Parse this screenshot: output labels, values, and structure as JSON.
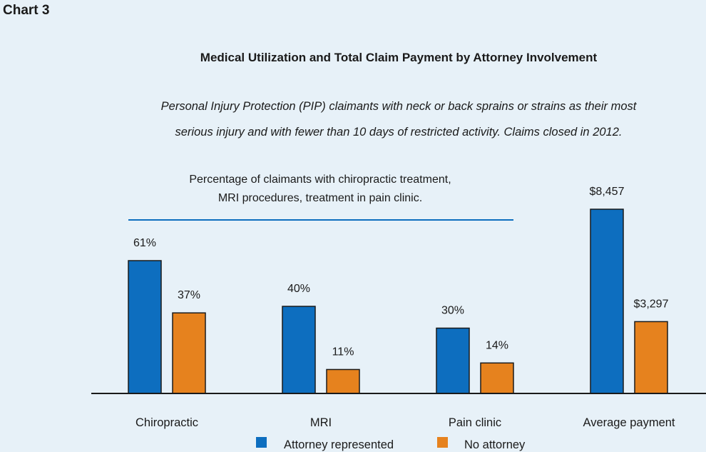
{
  "heading": "Chart 3",
  "chart_data": {
    "type": "bar",
    "title": "Medical Utilization and Total Claim Payment by Attorney Involvement",
    "subtitle": [
      "Personal Injury Protection (PIP) claimants with neck or back sprains or strains as their most",
      "serious injury and with fewer than 10 days of restricted activity. Claims closed in 2012."
    ],
    "group_note": [
      "Percentage of claimants with chiropractic treatment,",
      "MRI procedures, treatment in pain clinic."
    ],
    "categories": [
      "Chiropractic",
      "MRI",
      "Pain clinic",
      "Average payment"
    ],
    "series": [
      {
        "name": "Attorney represented",
        "color": "#0d6ebf",
        "values": [
          61,
          40,
          30,
          8457
        ],
        "labels": [
          "61%",
          "40%",
          "30%",
          "$8,457"
        ]
      },
      {
        "name": "No attorney",
        "color": "#e6821e",
        "values": [
          37,
          11,
          14,
          3297
        ],
        "labels": [
          "37%",
          "11%",
          "14%",
          "$3,297"
        ]
      }
    ],
    "units": [
      "percent",
      "percent",
      "percent",
      "dollars"
    ],
    "legend_position": "bottom",
    "grid": false
  }
}
